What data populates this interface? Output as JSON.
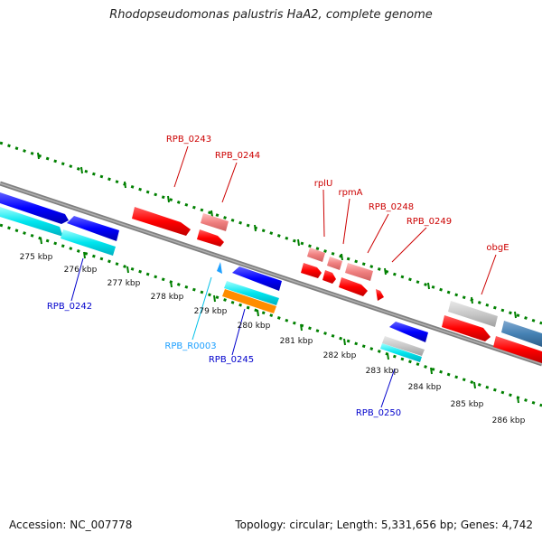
{
  "title": "Rhodopseudomonas palustris HaA2, complete genome",
  "footer": {
    "accession": "Accession: NC_007778",
    "summary": "Topology: circular; Length: 5,331,656 bp; Genes: 4,742"
  },
  "ticks": [
    "275 kbp",
    "276 kbp",
    "277 kbp",
    "278 kbp",
    "279 kbp",
    "280 kbp",
    "281 kbp",
    "282 kbp",
    "283 kbp",
    "284 kbp",
    "285 kbp",
    "286 kbp"
  ],
  "labels": {
    "rpb0243": "RPB_0243",
    "rpb0244": "RPB_0244",
    "rplU": "rplU",
    "rpmA": "rpmA",
    "rpb0248": "RPB_0248",
    "rpb0249": "RPB_0249",
    "obgE": "obgE",
    "rpb0242": "RPB_0242",
    "rpbR0003": "RPB_R0003",
    "rpb0245": "RPB_0245",
    "rpb0250": "RPB_0250"
  },
  "colors": {
    "forward_gene": "#ff0000",
    "forward_gene_light": "#f08080",
    "reverse_gene": "#0000ff",
    "rna_gene": "#00e5ee",
    "orange_feature": "#ff8c00",
    "tick_green": "#008000",
    "backbone": "#808080",
    "steelblue_gene": "#4682b4"
  }
}
